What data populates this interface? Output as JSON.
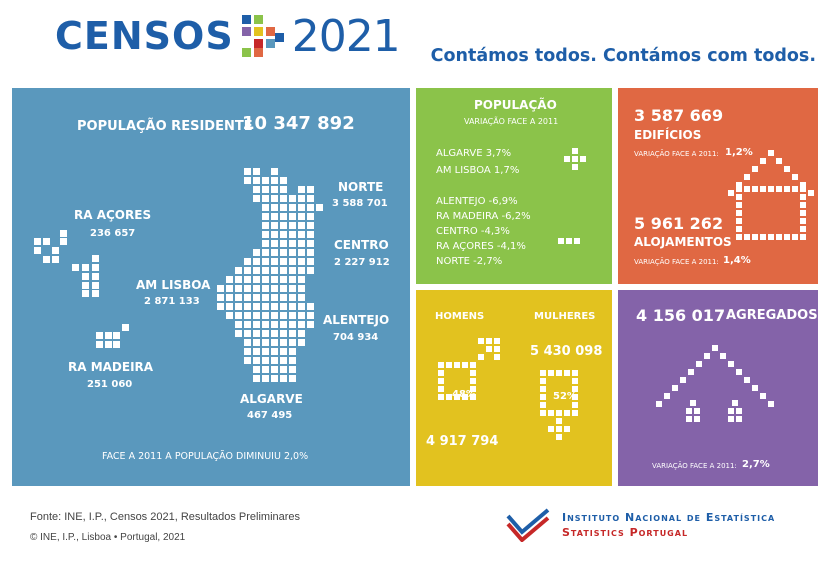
{
  "header": {
    "logo_word": "CENSOS",
    "logo_year": "2021",
    "tagline": "Contámos todos. Contámos com todos."
  },
  "population_panel": {
    "label": "POPULAÇÃO RESIDENTE",
    "value": "10 347 892",
    "regions": {
      "acores": {
        "name": "RA AÇORES",
        "value": "236 657"
      },
      "lisboa": {
        "name": "AM LISBOA",
        "value": "2 871 133"
      },
      "madeira": {
        "name": "RA MADEIRA",
        "value": "251 060"
      },
      "norte": {
        "name": "NORTE",
        "value": "3 588 701"
      },
      "centro": {
        "name": "CENTRO",
        "value": "2 227 912"
      },
      "alentejo": {
        "name": "ALENTEJO",
        "value": "704 934"
      },
      "algarve": {
        "name": "ALGARVE",
        "value": "467 495"
      }
    },
    "note": "FACE A 2011 A POPULAÇÃO DIMINUIU 2,0%"
  },
  "variation_panel": {
    "title": "POPULAÇÃO",
    "subtitle": "VARIAÇÃO FACE A 2011",
    "increases": [
      "ALGARVE  3,7%",
      "AM LISBOA  1,7%"
    ],
    "decreases": [
      "ALENTEJO  -6,9%",
      "RA MADEIRA  -6,2%",
      "CENTRO  -4,3%",
      "RA AÇORES  -4,1%",
      "NORTE  -2,7%"
    ]
  },
  "buildings_panel": {
    "buildings_value": "3 587 669",
    "buildings_label": "EDIFÍCIOS",
    "buildings_var_label": "VARIAÇÃO FACE A 2011:",
    "buildings_var_value": "1,2%",
    "dwellings_value": "5 961 262",
    "dwellings_label": "ALOJAMENTOS",
    "dwellings_var_label": "VARIAÇÃO FACE A 2011:",
    "dwellings_var_value": "1,4%"
  },
  "gender_panel": {
    "men_label": "HOMENS",
    "women_label": "MULHERES",
    "men_pct": "48%",
    "women_pct": "52%",
    "men_value": "4 917 794",
    "women_value": "5 430 098"
  },
  "households_panel": {
    "value": "4 156 017",
    "label": "AGREGADOS",
    "var_label": "VARIAÇÃO FACE A 2011:",
    "var_value": "2,7%"
  },
  "footer": {
    "source": "Fonte: INE, I.P., Censos 2021, Resultados Preliminares",
    "copyright": "© INE, I.P., Lisboa • Portugal, 2021",
    "ine_line1": "Instituto Nacional de Estatística",
    "ine_line2": "Statistics Portugal"
  },
  "colors": {
    "brand_blue": "#1e5ea8",
    "panel_blue": "#5a98bd",
    "panel_green": "#8bc34a",
    "panel_orange": "#e06843",
    "panel_yellow": "#e2c21f",
    "panel_purple": "#8463a9",
    "ine_red": "#c62828"
  }
}
